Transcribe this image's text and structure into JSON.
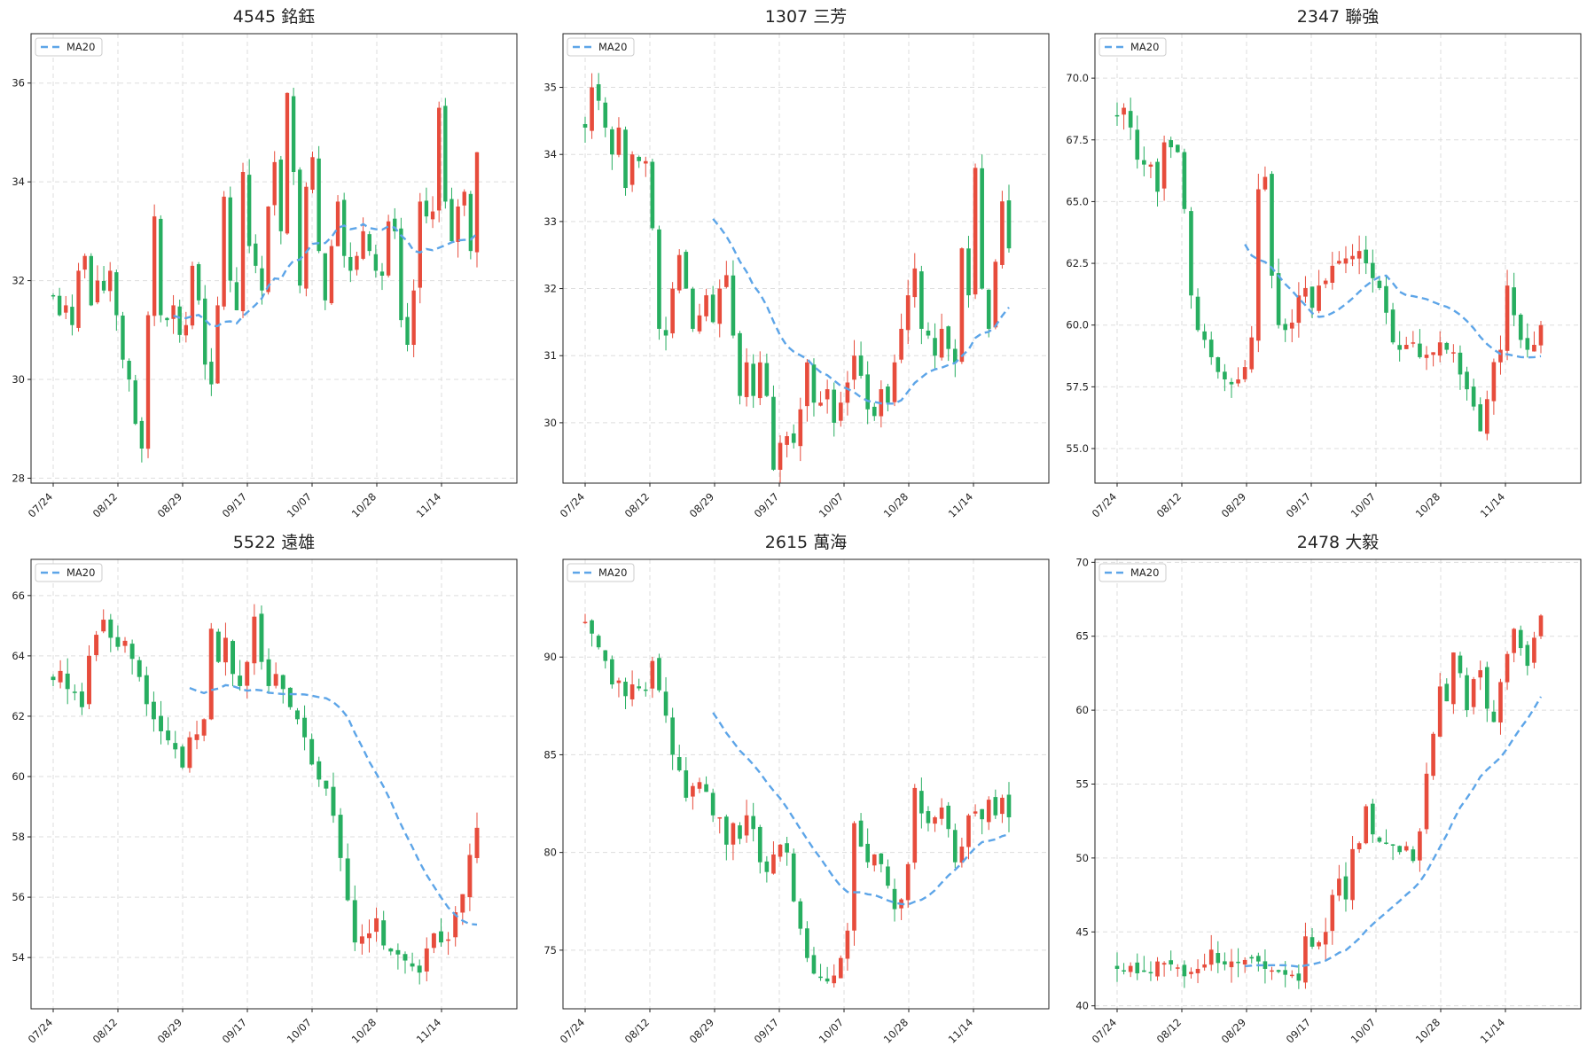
{
  "colors": {
    "up": "#e74c3c",
    "down": "#27ae60",
    "ma": "#5da5e8",
    "grid": "#dddddd"
  },
  "chart_data": [
    {
      "type": "candlestick",
      "title": "4545 銘鈺",
      "legend": [
        "MA20"
      ],
      "legend_position": "top-left",
      "grid": true,
      "xticks": [
        "07/24",
        "08/12",
        "08/29",
        "09/17",
        "10/07",
        "10/28",
        "11/14"
      ],
      "ylim": [
        27.9,
        37.0
      ],
      "yticks": [
        28,
        30,
        32,
        34,
        36
      ],
      "ytick_labels": [
        "28",
        "30",
        "32",
        "34",
        "36"
      ],
      "close": [
        31.7,
        31.3,
        31.5,
        31.1,
        32.2,
        32.5,
        31.5,
        32.0,
        31.8,
        32.2,
        31.3,
        30.4,
        30.0,
        29.1,
        28.6,
        31.3,
        33.3,
        31.3,
        31.2,
        31.5,
        30.9,
        31.1,
        32.3,
        31.6,
        30.3,
        29.9,
        31.5,
        33.7,
        32.0,
        31.4,
        34.2,
        32.7,
        32.3,
        31.8,
        33.5,
        34.4,
        33.0,
        35.8,
        34.2,
        31.9,
        33.9,
        34.5,
        32.6,
        31.6,
        32.7,
        33.6,
        32.5,
        32.2,
        32.5,
        33.0,
        32.6,
        32.2,
        32.1,
        33.2,
        33.0,
        31.2,
        30.7,
        31.8,
        33.6,
        33.3,
        33.4,
        35.5,
        33.6,
        32.8,
        33.5,
        33.8,
        32.6,
        34.6
      ]
    },
    {
      "type": "candlestick",
      "title": "1307 三芳",
      "legend": [
        "MA20"
      ],
      "legend_position": "top-left",
      "grid": true,
      "xticks": [
        "07/24",
        "08/12",
        "08/29",
        "09/17",
        "10/07",
        "10/28",
        "11/14"
      ],
      "ylim": [
        29.1,
        35.8
      ],
      "yticks": [
        30,
        31,
        32,
        33,
        34,
        35
      ],
      "ytick_labels": [
        "30",
        "31",
        "32",
        "33",
        "34",
        "35"
      ],
      "close": [
        34.4,
        35.0,
        34.8,
        34.4,
        34.0,
        34.4,
        33.5,
        34.0,
        33.9,
        33.9,
        32.9,
        31.4,
        31.3,
        32.0,
        32.5,
        32.0,
        31.4,
        31.6,
        31.9,
        31.5,
        32.0,
        32.2,
        31.3,
        30.4,
        30.9,
        30.4,
        30.9,
        30.4,
        29.3,
        29.7,
        29.8,
        29.7,
        30.2,
        30.9,
        30.3,
        30.3,
        30.5,
        30.0,
        30.3,
        30.6,
        31.0,
        30.7,
        30.2,
        30.1,
        30.5,
        30.3,
        30.9,
        31.4,
        31.9,
        32.3,
        31.4,
        31.3,
        31.0,
        31.4,
        31.1,
        30.9,
        32.6,
        31.9,
        33.8,
        32.0,
        31.4,
        32.4,
        33.3,
        32.6
      ]
    },
    {
      "type": "candlestick",
      "title": "2347 聯強",
      "legend": [
        "MA20"
      ],
      "legend_position": "top-left",
      "grid": true,
      "xticks": [
        "07/24",
        "08/12",
        "08/29",
        "09/17",
        "10/07",
        "10/28",
        "11/14"
      ],
      "ylim": [
        53.6,
        71.8
      ],
      "yticks": [
        55.0,
        57.5,
        60.0,
        62.5,
        65.0,
        67.5,
        70.0
      ],
      "ytick_labels": [
        "55.0",
        "57.5",
        "60.0",
        "62.5",
        "65.0",
        "67.5",
        "70.0"
      ],
      "close": [
        68.5,
        68.8,
        68.0,
        66.7,
        66.5,
        66.5,
        65.4,
        67.4,
        67.2,
        67.0,
        64.7,
        61.2,
        59.8,
        59.4,
        58.7,
        58.1,
        57.8,
        57.6,
        57.8,
        58.3,
        59.5,
        65.5,
        66.0,
        62.0,
        60.0,
        59.8,
        60.1,
        61.2,
        61.5,
        60.7,
        61.6,
        61.8,
        62.4,
        62.6,
        62.7,
        62.8,
        63.0,
        62.5,
        61.9,
        61.5,
        60.5,
        59.3,
        59.0,
        59.2,
        59.3,
        58.7,
        58.8,
        58.9,
        59.3,
        59.0,
        58.9,
        58.0,
        57.4,
        56.7,
        55.7,
        57.0,
        58.5,
        59.0,
        61.6,
        60.4,
        59.4,
        59.0,
        59.2,
        60.0
      ]
    },
    {
      "type": "candlestick",
      "title": "5522 遠雄",
      "legend": [
        "MA20"
      ],
      "legend_position": "top-left",
      "grid": true,
      "xticks": [
        "07/24",
        "08/12",
        "08/29",
        "09/17",
        "10/07",
        "10/28",
        "11/14"
      ],
      "ylim": [
        52.3,
        67.2
      ],
      "yticks": [
        54,
        56,
        58,
        60,
        62,
        64,
        66
      ],
      "ytick_labels": [
        "54",
        "56",
        "58",
        "60",
        "62",
        "64",
        "66"
      ],
      "close": [
        63.2,
        63.5,
        62.9,
        62.8,
        62.3,
        64.0,
        64.7,
        65.2,
        64.6,
        64.3,
        64.5,
        63.9,
        63.3,
        62.4,
        61.9,
        61.5,
        61.2,
        60.9,
        60.3,
        61.3,
        61.4,
        61.9,
        64.9,
        63.8,
        64.6,
        63.4,
        63.0,
        63.8,
        65.3,
        63.8,
        63.0,
        63.4,
        62.9,
        62.3,
        61.9,
        61.3,
        60.4,
        59.9,
        59.6,
        58.7,
        57.3,
        55.9,
        54.5,
        54.7,
        54.8,
        55.3,
        54.4,
        54.2,
        54.1,
        53.9,
        53.7,
        53.5,
        54.3,
        54.8,
        54.5,
        54.6,
        55.5,
        56.1,
        57.4,
        58.3
      ]
    },
    {
      "type": "candlestick",
      "title": "2615 萬海",
      "legend": [
        "MA20"
      ],
      "legend_position": "top-left",
      "grid": true,
      "xticks": [
        "07/24",
        "08/12",
        "08/29",
        "09/17",
        "10/07",
        "10/28",
        "11/14"
      ],
      "ylim": [
        72.0,
        95.0
      ],
      "yticks": [
        75,
        80,
        85,
        90
      ],
      "ytick_labels": [
        "75",
        "80",
        "85",
        "90"
      ],
      "close": [
        91.8,
        91.2,
        90.5,
        89.8,
        88.6,
        88.8,
        88.0,
        88.6,
        88.4,
        88.3,
        89.8,
        88.3,
        87.0,
        85.0,
        84.2,
        82.8,
        83.4,
        83.6,
        83.1,
        81.9,
        81.8,
        80.4,
        81.5,
        80.7,
        81.9,
        81.2,
        79.5,
        79.0,
        79.9,
        80.4,
        80.0,
        77.5,
        76.1,
        74.6,
        73.8,
        73.6,
        73.4,
        73.7,
        74.6,
        76.0,
        81.5,
        80.3,
        79.5,
        79.9,
        79.4,
        78.3,
        77.1,
        77.6,
        79.4,
        83.3,
        82.0,
        81.5,
        81.8,
        82.3,
        81.2,
        79.5,
        80.3,
        81.9,
        82.1,
        81.7,
        82.7,
        81.9,
        82.8,
        81.8
      ]
    },
    {
      "type": "candlestick",
      "title": "2478 大毅",
      "legend": [
        "MA20"
      ],
      "legend_position": "top-left",
      "grid": true,
      "xticks": [
        "07/24",
        "08/12",
        "08/29",
        "09/17",
        "10/07",
        "10/28",
        "11/14"
      ],
      "ylim": [
        39.8,
        70.2
      ],
      "yticks": [
        40,
        45,
        50,
        55,
        60,
        65,
        70
      ],
      "ytick_labels": [
        "40",
        "45",
        "50",
        "55",
        "60",
        "65",
        "70"
      ],
      "close": [
        42.5,
        42.4,
        42.7,
        42.2,
        42.3,
        42.2,
        43.0,
        42.9,
        42.8,
        42.6,
        42.0,
        42.3,
        42.5,
        42.8,
        43.8,
        42.9,
        42.8,
        43.0,
        42.9,
        43.1,
        43.2,
        43.0,
        42.5,
        42.4,
        42.3,
        42.1,
        42.1,
        41.7,
        44.7,
        44.0,
        44.3,
        45.0,
        47.5,
        48.6,
        47.2,
        50.6,
        51.0,
        53.5,
        51.6,
        51.1,
        51.0,
        50.9,
        50.4,
        50.8,
        49.8,
        51.8,
        55.7,
        58.4,
        61.6,
        60.6,
        63.9,
        62.5,
        60.0,
        62.1,
        62.7,
        60.1,
        59.2,
        61.9,
        63.8,
        65.5,
        64.2,
        63.0,
        64.9,
        66.4
      ]
    }
  ]
}
